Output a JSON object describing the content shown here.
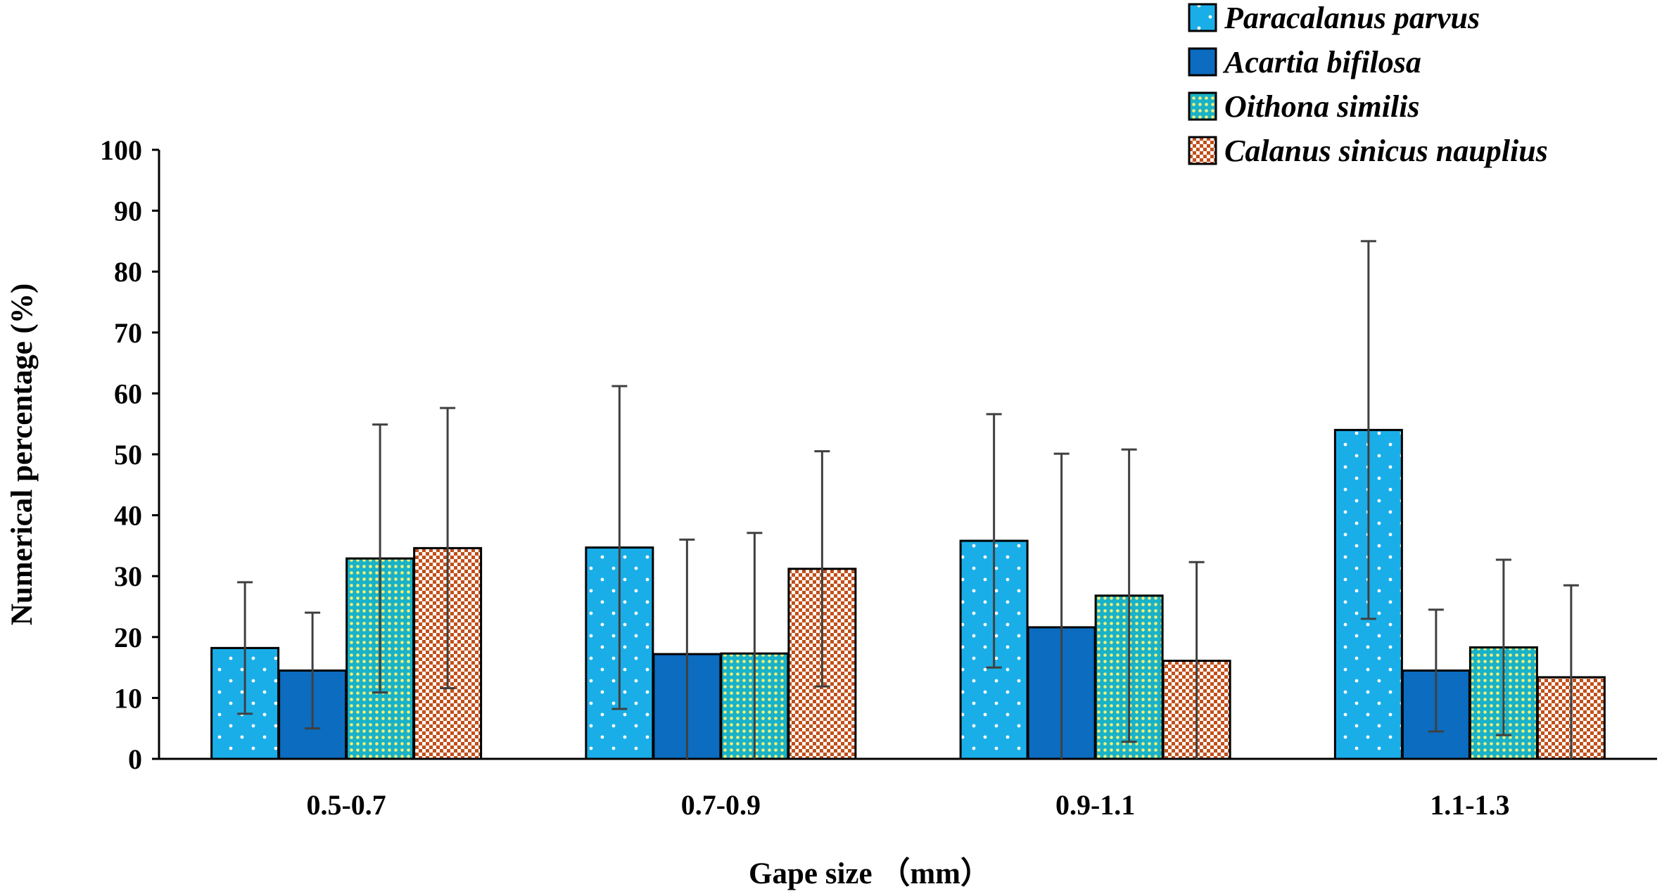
{
  "chart_data": {
    "type": "bar",
    "title": "",
    "xlabel": "Gape size （mm）",
    "ylabel": "Numerical percentage (%)",
    "ylim": [
      0,
      100
    ],
    "yticks": [
      "0",
      "10",
      "20",
      "30",
      "40",
      "50",
      "60",
      "70",
      "80",
      "90",
      "100"
    ],
    "categories": [
      "0.5-0.7",
      "0.7-0.9",
      "0.9-1.1",
      "1.1-1.3"
    ],
    "legend_position": "top-right",
    "series": [
      {
        "name": "Paracalanus parvus",
        "values": [
          18.2,
          34.7,
          35.8,
          54.0
        ],
        "errors": [
          10.8,
          26.5,
          20.8,
          31.0
        ],
        "color": "#1aaee8",
        "pattern": "dots-white"
      },
      {
        "name": "Acartia bifilosa",
        "values": [
          14.5,
          17.2,
          21.6,
          14.5
        ],
        "errors": [
          9.5,
          18.8,
          28.5,
          10.0
        ],
        "color": "#0b6cc0",
        "pattern": "solid"
      },
      {
        "name": "Oithona similis",
        "values": [
          32.9,
          17.3,
          26.8,
          18.3
        ],
        "errors": [
          22.0,
          19.8,
          24.0,
          14.4
        ],
        "color": "#19b2c8",
        "pattern": "dots-yellow"
      },
      {
        "name": "Calanus sinicus nauplius",
        "values": [
          34.6,
          31.2,
          16.1,
          13.4
        ],
        "errors": [
          23.0,
          19.3,
          16.2,
          15.1
        ],
        "color": "#c0501a",
        "pattern": "checker"
      }
    ]
  }
}
